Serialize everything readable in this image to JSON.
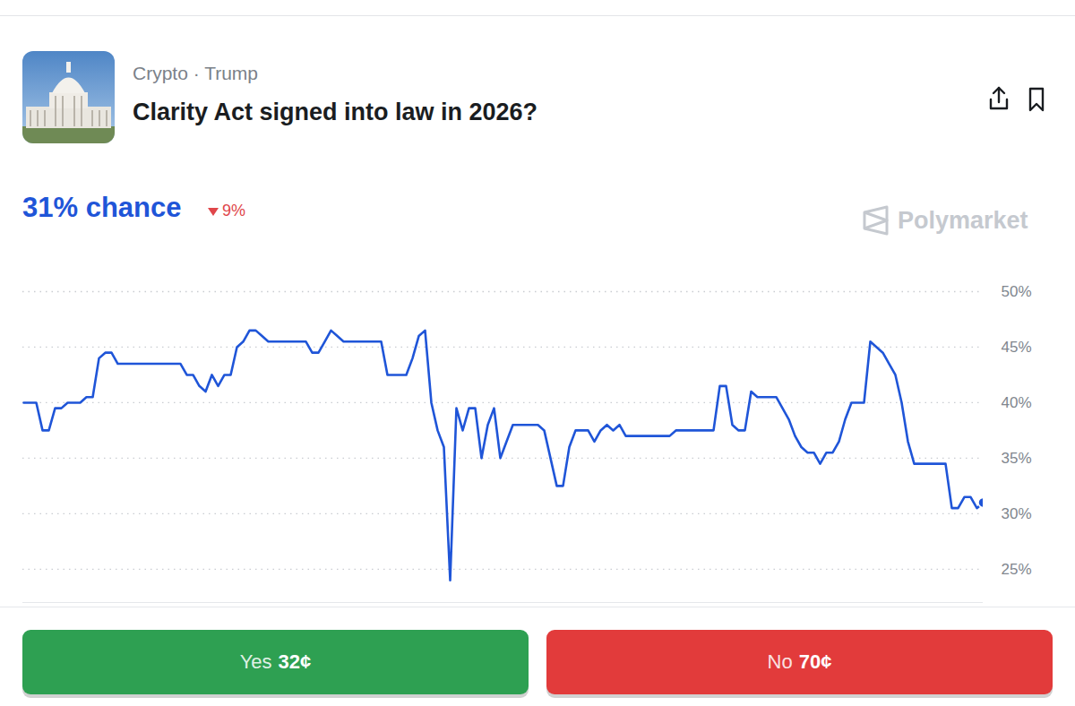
{
  "header": {
    "breadcrumb": "Crypto · Trump",
    "title": "Clarity Act signed into law in 2026?"
  },
  "odds": {
    "headline": "31% chance",
    "change": "9%",
    "direction": "down"
  },
  "watermark": "Polymarket",
  "chart_data": {
    "type": "line",
    "color": "#1f55d8",
    "categories": [
      null,
      null,
      null,
      null,
      null,
      null,
      null,
      null,
      null,
      null,
      null,
      null,
      null,
      null,
      null,
      null,
      null,
      null,
      null,
      null,
      null,
      null,
      null,
      null,
      null,
      null,
      null,
      null,
      null,
      null,
      null,
      null,
      null,
      null,
      null,
      null,
      null,
      null,
      null,
      null,
      null,
      null,
      null,
      null,
      null,
      null,
      null,
      null,
      null,
      null,
      null,
      null,
      null,
      null,
      null,
      null,
      null,
      null,
      null,
      null,
      null,
      null,
      null,
      null,
      null,
      null,
      null,
      null,
      null,
      null,
      null,
      null,
      null,
      null,
      null,
      null,
      null,
      null,
      null,
      null,
      null,
      null,
      null,
      null,
      null,
      null,
      null,
      null,
      null,
      null,
      null,
      null,
      null,
      null,
      null,
      null,
      null,
      null,
      null,
      null,
      null,
      null,
      null,
      null,
      null,
      null,
      null,
      null,
      null,
      null,
      null,
      null,
      null,
      null,
      null,
      null,
      null,
      null,
      null,
      null,
      null,
      null,
      null,
      null,
      null,
      null,
      null,
      null,
      null,
      null,
      null,
      null,
      null,
      null,
      null,
      null,
      null,
      null,
      null,
      null,
      null,
      null,
      null,
      null,
      null,
      null,
      null,
      null,
      null,
      null,
      null,
      null,
      null,
      null
    ],
    "values": [
      40,
      40,
      40,
      37.5,
      37.5,
      39.5,
      39.5,
      40,
      40,
      40,
      40.5,
      40.5,
      44,
      44.5,
      44.5,
      43.5,
      43.5,
      43.5,
      43.5,
      43.5,
      43.5,
      43.5,
      43.5,
      43.5,
      43.5,
      43.5,
      42.5,
      42.5,
      41.5,
      41,
      42.5,
      41.5,
      42.5,
      42.5,
      45,
      45.5,
      46.5,
      46.5,
      46,
      45.5,
      45.5,
      45.5,
      45.5,
      45.5,
      45.5,
      45.5,
      44.5,
      44.5,
      45.5,
      46.5,
      46,
      45.5,
      45.5,
      45.5,
      45.5,
      45.5,
      45.5,
      45.5,
      42.5,
      42.5,
      42.5,
      42.5,
      44,
      46,
      46.5,
      40,
      37.5,
      36,
      24,
      39.5,
      37.5,
      39.5,
      39.5,
      35,
      38,
      39.5,
      35,
      36.5,
      38,
      38,
      38,
      38,
      38,
      37.5,
      35,
      32.5,
      32.5,
      36,
      37.5,
      37.5,
      37.5,
      36.5,
      37.5,
      38,
      37.5,
      38,
      37,
      37,
      37,
      37,
      37,
      37,
      37,
      37,
      37.5,
      37.5,
      37.5,
      37.5,
      37.5,
      37.5,
      37.5,
      41.5,
      41.5,
      38,
      37.5,
      37.5,
      41,
      40.5,
      40.5,
      40.5,
      40.5,
      39.5,
      38.5,
      37,
      36,
      35.5,
      35.5,
      34.5,
      35.5,
      35.5,
      36.5,
      38.5,
      40,
      40,
      40,
      45.5,
      45,
      44.5,
      43.5,
      42.5,
      40,
      36.5,
      34.5,
      34.5,
      34.5,
      34.5,
      34.5,
      34.5,
      30.5,
      30.5,
      31.5,
      31.5,
      30.5,
      31
    ],
    "ylim": [
      22,
      50
    ],
    "yticks": [
      {
        "value": 25,
        "label": "25%"
      },
      {
        "value": 30,
        "label": "30%"
      },
      {
        "value": 35,
        "label": "35%"
      },
      {
        "value": 40,
        "label": "40%"
      },
      {
        "value": 45,
        "label": "45%"
      },
      {
        "value": 50,
        "label": "50%"
      }
    ],
    "grid": true,
    "tick_labels": "y"
  },
  "buttons": [
    {
      "label": "Yes",
      "price": "32¢",
      "color": "#2ea052"
    },
    {
      "label": "No",
      "price": "70¢",
      "color": "#e23b3b"
    }
  ]
}
